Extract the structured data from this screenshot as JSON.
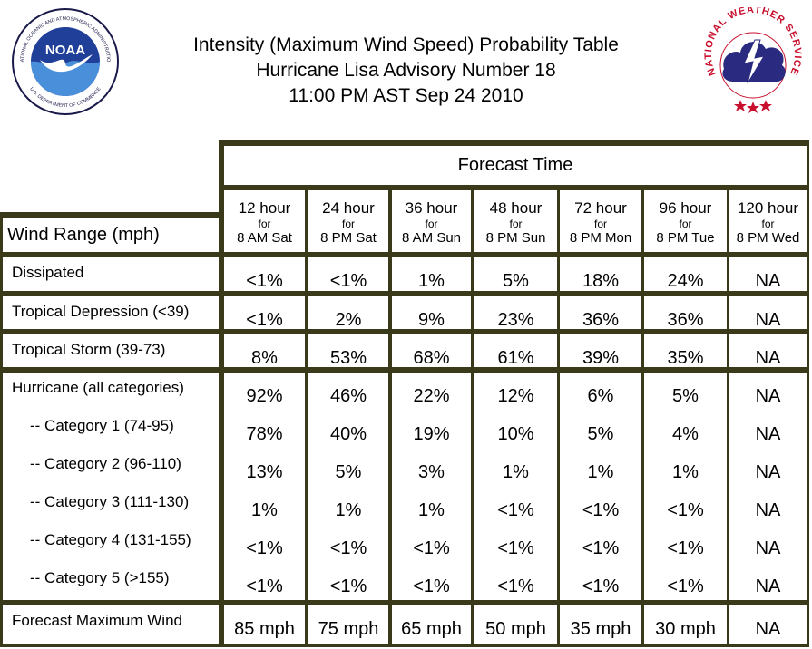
{
  "header": {
    "line1": "Intensity (Maximum Wind Speed) Probability Table",
    "line2": "Hurricane Lisa Advisory Number 18",
    "line3": "11:00 PM AST Sep 24 2010"
  },
  "logos": {
    "noaa": {
      "text": "NOAA",
      "ring_text": "NATIONAL OCEANIC AND ATMOSPHERIC ADMINISTRATION",
      "ring_text_bottom": "U.S. DEPARTMENT OF COMMERCE"
    },
    "nws": {
      "ring_text": "NATIONAL WEATHER SERVICE"
    }
  },
  "table": {
    "forecast_time_label": "Forecast Time",
    "wind_range_label": "Wind Range (mph)",
    "columns": [
      {
        "hours": "12 hour",
        "for": "for",
        "when": "8 AM Sat"
      },
      {
        "hours": "24 hour",
        "for": "for",
        "when": "8 PM Sat"
      },
      {
        "hours": "36 hour",
        "for": "for",
        "when": "8 AM Sun"
      },
      {
        "hours": "48 hour",
        "for": "for",
        "when": "8 PM Sun"
      },
      {
        "hours": "72 hour",
        "for": "for",
        "when": "8 PM Mon"
      },
      {
        "hours": "96 hour",
        "for": "for",
        "when": "8 PM Tue"
      },
      {
        "hours": "120 hour",
        "for": "for",
        "when": "8 PM Wed"
      }
    ],
    "rows": [
      {
        "label": "Dissipated",
        "values": [
          "<1%",
          "<1%",
          "1%",
          "5%",
          "18%",
          "24%",
          "NA"
        ]
      },
      {
        "label": "Tropical Depression (<39)",
        "values": [
          "<1%",
          "2%",
          "9%",
          "23%",
          "36%",
          "36%",
          "NA"
        ]
      },
      {
        "label": "Tropical Storm (39-73)",
        "values": [
          "8%",
          "53%",
          "68%",
          "61%",
          "39%",
          "35%",
          "NA"
        ]
      },
      {
        "label": "Hurricane (all categories)",
        "values": [
          "92%",
          "46%",
          "22%",
          "12%",
          "6%",
          "5%",
          "NA"
        ]
      },
      {
        "label": "-- Category 1 (74-95)",
        "values": [
          "78%",
          "40%",
          "19%",
          "10%",
          "5%",
          "4%",
          "NA"
        ]
      },
      {
        "label": "-- Category 2 (96-110)",
        "values": [
          "13%",
          "5%",
          "3%",
          "1%",
          "1%",
          "1%",
          "NA"
        ]
      },
      {
        "label": "-- Category 3 (111-130)",
        "values": [
          "1%",
          "1%",
          "1%",
          "<1%",
          "<1%",
          "<1%",
          "NA"
        ]
      },
      {
        "label": "-- Category 4 (131-155)",
        "values": [
          "<1%",
          "<1%",
          "<1%",
          "<1%",
          "<1%",
          "<1%",
          "NA"
        ]
      },
      {
        "label": "-- Category 5 (>155)",
        "values": [
          "<1%",
          "<1%",
          "<1%",
          "<1%",
          "<1%",
          "<1%",
          "NA"
        ]
      },
      {
        "label": "Forecast Maximum Wind",
        "values": [
          "85 mph",
          "75 mph",
          "65 mph",
          "50 mph",
          "35 mph",
          "30 mph",
          "NA"
        ]
      }
    ]
  }
}
